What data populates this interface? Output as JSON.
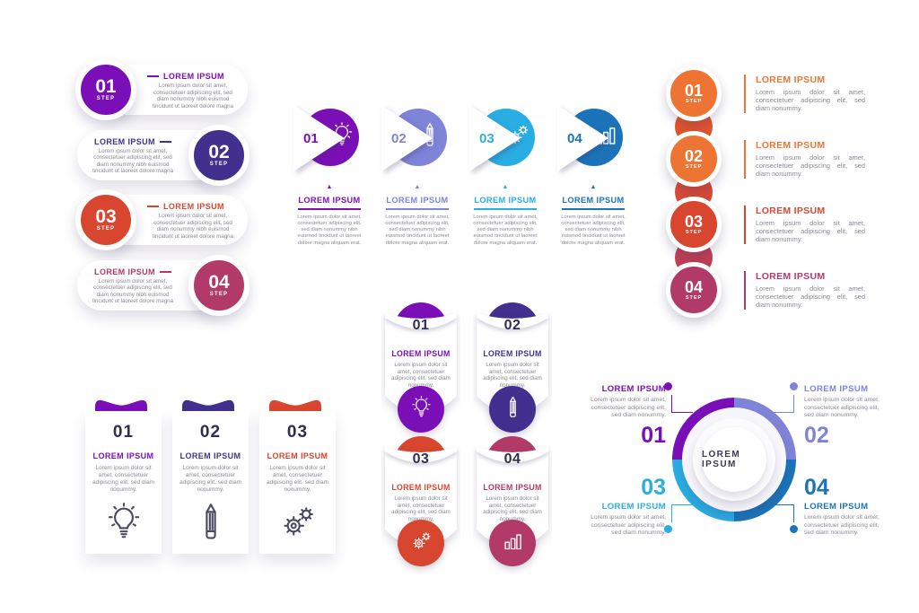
{
  "page": {
    "background": "#ffffff"
  },
  "palette": {
    "purple": "#7a0fb8",
    "indigo": "#41308d",
    "red": "#d8462f",
    "maroon": "#b23a69",
    "orange": "#ee7434",
    "periwinkle": "#7f84d9",
    "cyan": "#29aee4",
    "blue": "#1b74ba",
    "dark_text": "#2f2e4e",
    "body_text": "#8b8898"
  },
  "group_rounded_steps": {
    "items": [
      {
        "number": "01",
        "step_label": "STEP",
        "title": "LOREM IPSUM",
        "body": "Lorem ipsum dolor sit amet, consectetuer adipiscing elit, sed diam nonummy nibh euismod tincidunt ut laoreet dolore magna",
        "color": "#7a0fb8",
        "side": "left"
      },
      {
        "number": "02",
        "step_label": "STEP",
        "title": "LOREM IPSUM",
        "body": "Lorem ipsum dolor sit amet, consectetuer adipiscing elit, sed diam nonummy nibh euismod tincidunt ut laoreet dolore magna",
        "color": "#41308d",
        "side": "right"
      },
      {
        "number": "03",
        "step_label": "STEP",
        "title": "LOREM IPSUM",
        "body": "Lorem ipsum dolor sit amet, consectetuer adipiscing elit, sed diam nonummy nibh euismod tincidunt ut laoreet dolore magna",
        "color": "#d8462f",
        "side": "left"
      },
      {
        "number": "04",
        "step_label": "STEP",
        "title": "LOREM IPSUM",
        "body": "Lorem ipsum dolor sit amet, consectetuer adipiscing elit, sed diam nonummy nibh euismod tincidunt ut laoreet dolore magna",
        "color": "#b23a69",
        "side": "right"
      }
    ]
  },
  "group_arrow_circles": {
    "items": [
      {
        "number": "01",
        "title": "LOREM IPSUM",
        "body": "Lorem ipsum dolor sit amet, consectetuer adipiscing elit, sed diam nonummy nibh euismod tincidunt ut laoreet dolore magna aliquam erat.",
        "color": "#7a0fb8",
        "icon": "bulb-icon",
        "marker": "▲"
      },
      {
        "number": "02",
        "title": "LOREM IPSUM",
        "body": "Lorem ipsum dolor sit amet, consectetuer adipiscing elit, sed diam nonummy nibh euismod tincidunt ut laoreet dolore magna aliquam erat.",
        "color": "#7f84d9",
        "icon": "pencil-icon",
        "marker": "▲"
      },
      {
        "number": "03",
        "title": "LOREM IPSUM",
        "body": "Lorem ipsum dolor sit amet, consectetuer adipiscing elit, sed diam nonummy nibh euismod tincidunt ut laoreet dolore magna aliquam erat.",
        "color": "#29aee4",
        "icon": "gears-icon",
        "marker": "▲"
      },
      {
        "number": "04",
        "title": "LOREM IPSUM",
        "body": "Lorem ipsum dolor sit amet, consectetuer adipiscing elit, sed diam nonummy nibh euismod tincidunt ut laoreet dolore magna aliquam erat.",
        "color": "#1b74ba",
        "icon": "bar-chart-icon",
        "marker": "▲"
      }
    ]
  },
  "group_vertical_chain": {
    "connector_colors": [
      "#e2552d",
      "#da4a36",
      "#c23f55"
    ],
    "items": [
      {
        "number": "01",
        "step_label": "STEP",
        "title": "LOREM IPSUM",
        "body": "Lorem ipsum dolor sit amet, consectetuer adipiscing elit, sed diam nonummy.",
        "color": "#ee7434"
      },
      {
        "number": "02",
        "step_label": "STEP",
        "title": "LOREM IPSUM",
        "body": "Lorem ipsum dolor sit amet, consectetuer adipiscing elit, sed diam nonummy.",
        "color": "#ee7434"
      },
      {
        "number": "03",
        "step_label": "STEP",
        "title": "LOREM IPSUM",
        "body": "Lorem ipsum dolor sit amet, consectetuer adipiscing elit, sed diam nonummy.",
        "color": "#d8462f"
      },
      {
        "number": "04",
        "step_label": "STEP",
        "title": "LOREM IPSUM",
        "body": "Lorem ipsum dolor sit amet, consectetuer adipiscing elit, sed diam nonummy.",
        "color": "#b23a69"
      }
    ]
  },
  "group_tab_cards": {
    "items": [
      {
        "number": "01",
        "title": "LOREM IPSUM",
        "body": "Lorem ipsum dolor sit amet, consectetuer adipiscing elit, sed diam nonummy.",
        "color": "#7a0fb8",
        "icon": "bulb-icon"
      },
      {
        "number": "02",
        "title": "LOREM IPSUM",
        "body": "Lorem ipsum dolor sit amet, consectetuer adipiscing elit, sed diam nonummy.",
        "color": "#41308d",
        "icon": "pencil-icon"
      },
      {
        "number": "03",
        "title": "LOREM IPSUM",
        "body": "Lorem ipsum dolor sit amet, consectetuer adipiscing elit, sed diam nonummy.",
        "color": "#d8462f",
        "icon": "gears-icon"
      }
    ]
  },
  "group_banners": {
    "items": [
      {
        "number": "01",
        "title": "LOREM IPSUM",
        "body": "Lorem ipsum dolor sit amet, consectetuer adipiscing elit, sed diam nonummy.",
        "color": "#7a0fb8",
        "icon": "bulb-icon"
      },
      {
        "number": "02",
        "title": "LOREM IPSUM",
        "body": "Lorem ipsum dolor sit amet, consectetuer adipiscing elit, sed diam nonummy.",
        "color": "#41308d",
        "icon": "pencil-icon"
      },
      {
        "number": "03",
        "title": "LOREM IPSUM",
        "body": "Lorem ipsum dolor sit amet, consectetuer adipiscing elit, sed diam nonummy.",
        "color": "#d8462f",
        "icon": "gears-icon"
      },
      {
        "number": "04",
        "title": "LOREM IPSUM",
        "body": "Lorem ipsum dolor sit amet, consectetuer adipiscing elit, sed diam nonummy.",
        "color": "#b23a69",
        "icon": "bar-chart-icon"
      }
    ]
  },
  "group_circle_diagram": {
    "center_label": "LOREM IPSUM",
    "items": [
      {
        "number": "01",
        "title": "LOREM IPSUM",
        "body": "Lorem ipsum dolor sit amet, consectetuer adipiscing elit, sed diam nonummy.",
        "color": "#7a0fb8",
        "position": "top-left"
      },
      {
        "number": "02",
        "title": "LOREM IPSUM",
        "body": "Lorem ipsum dolor sit amet, consectetuer adipiscing elit, sed diam nonummy.",
        "color": "#7f84d9",
        "position": "top-right"
      },
      {
        "number": "03",
        "title": "LOREM IPSUM",
        "body": "Lorem ipsum dolor sit amet, consectetuer adipiscing elit, sed diam nonummy.",
        "color": "#29aee4",
        "position": "bottom-left"
      },
      {
        "number": "04",
        "title": "LOREM IPSUM",
        "body": "Lorem ipsum dolor sit amet, consectetuer adipiscing elit, sed diam nonummy.",
        "color": "#1b74ba",
        "position": "bottom-right"
      }
    ]
  }
}
